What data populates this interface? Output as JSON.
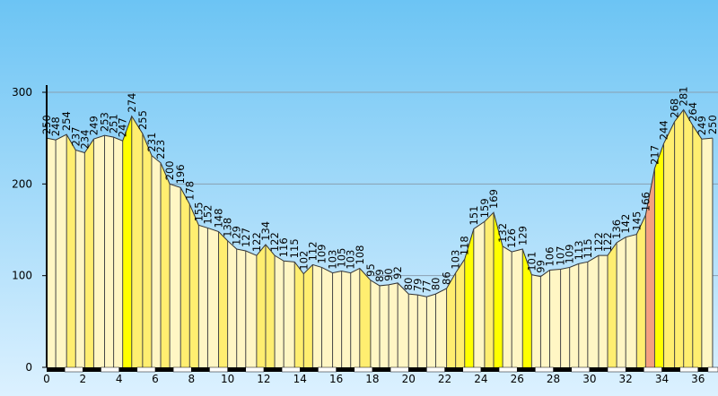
{
  "chart_data": {
    "type": "elevation-profile",
    "x": [
      0,
      0.5,
      1.1,
      1.6,
      2.1,
      2.6,
      3.2,
      3.7,
      4.2,
      4.7,
      5.3,
      5.8,
      6.3,
      6.8,
      7.4,
      7.9,
      8.4,
      8.9,
      9.5,
      10.0,
      10.5,
      11.0,
      11.6,
      12.1,
      12.6,
      13.1,
      13.7,
      14.2,
      14.7,
      15.2,
      15.8,
      16.3,
      16.8,
      17.3,
      17.9,
      18.4,
      18.9,
      19.4,
      20.0,
      20.5,
      21.0,
      21.5,
      22.1,
      22.6,
      23.1,
      23.6,
      24.2,
      24.7,
      25.2,
      25.7,
      26.3,
      26.8,
      27.3,
      27.8,
      28.4,
      28.9,
      29.4,
      29.9,
      30.5,
      31.0,
      31.5,
      32.0,
      32.6,
      33.1,
      33.6,
      34.1,
      34.7,
      35.2,
      35.7,
      36.2,
      36.8
    ],
    "values": [
      250,
      248,
      254,
      237,
      234,
      249,
      253,
      251,
      247,
      274,
      255,
      231,
      223,
      200,
      196,
      178,
      155,
      152,
      148,
      138,
      129,
      127,
      122,
      134,
      122,
      116,
      115,
      102,
      112,
      109,
      103,
      105,
      103,
      108,
      95,
      89,
      90,
      92,
      80,
      79,
      77,
      80,
      86,
      103,
      118,
      151,
      159,
      169,
      132,
      126,
      129,
      101,
      99,
      106,
      107,
      109,
      113,
      115,
      122,
      122,
      136,
      142,
      145,
      166,
      217,
      244,
      268,
      281,
      264,
      249,
      250
    ],
    "xlim": [
      0,
      37.1
    ],
    "ylim": [
      0,
      300
    ],
    "xticks": [
      0,
      2,
      4,
      6,
      8,
      10,
      12,
      14,
      16,
      18,
      20,
      22,
      24,
      26,
      28,
      30,
      32,
      34,
      36
    ],
    "yticks": [
      0,
      100,
      200,
      300
    ],
    "grid": true,
    "colors": [
      "#fff6c4",
      "#ffee70",
      "#ffff00",
      "#f4a080"
    ]
  }
}
